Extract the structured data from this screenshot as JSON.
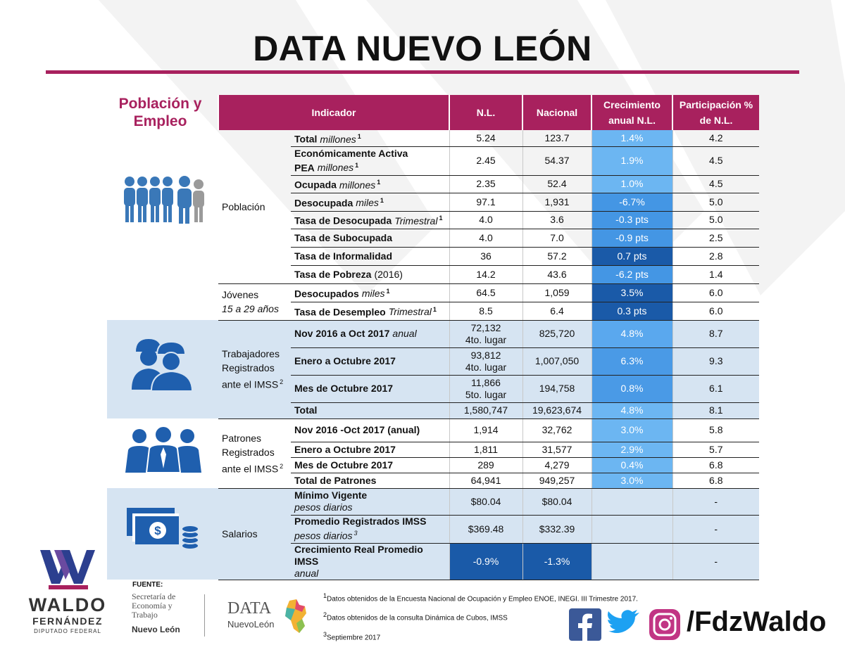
{
  "header": {
    "title": "DATA NUEVO LEÓN"
  },
  "section_title": "Población y Empleo",
  "table": {
    "columns": [
      "Indicador",
      "N.L.",
      "Nacional",
      "Crecimiento anual N.L.",
      "Participación % de N.L."
    ],
    "groups": [
      {
        "label": "Población",
        "rows": [
          {
            "indicator": "Total",
            "unit": "millones",
            "note": "1",
            "nl": "5.24",
            "nacional": "123.7",
            "growth": "1.4%",
            "growth_color": "#6cb6f2",
            "share": "4.2"
          },
          {
            "indicator": "Económicamente Activa PEA",
            "unit": "millones",
            "note": "1",
            "nl": "2.45",
            "nacional": "54.37",
            "growth": "1.9%",
            "growth_color": "#6cb6f2",
            "share": "4.5"
          },
          {
            "indicator": "Ocupada",
            "unit": "millones",
            "note": "1",
            "nl": "2.35",
            "nacional": "52.4",
            "growth": "1.0%",
            "growth_color": "#6cb6f2",
            "share": "4.5"
          },
          {
            "indicator": "Desocupada",
            "unit": "miles",
            "note": "1",
            "nl": "97.1",
            "nacional": "1,931",
            "growth": "-6.7%",
            "growth_color": "#4496e4",
            "share": "5.0"
          },
          {
            "indicator": "Tasa de Desocupada",
            "unit": "Trimestral",
            "note": "1",
            "nl": "4.0",
            "nacional": "3.6",
            "growth": "-0.3 pts",
            "growth_color": "#4496e4",
            "share": "5.0"
          },
          {
            "indicator": "Tasa de Subocupada",
            "nl": "4.0",
            "nacional": "7.0",
            "growth": "-0.9 pts",
            "growth_color": "#4496e4",
            "share": "2.5"
          },
          {
            "indicator": "Tasa de Informalidad",
            "nl": "36",
            "nacional": "57.2",
            "growth": "0.7 pts",
            "growth_color": "#1a5aa8",
            "share": "2.8"
          },
          {
            "indicator": "Tasa de Pobreza",
            "detail": "(2016)",
            "nl": "14.2",
            "nacional": "43.6",
            "growth": "-6.2 pts",
            "growth_color": "#4496e4",
            "share": "1.4"
          }
        ]
      },
      {
        "label": "Jóvenes",
        "sublabel": "15 a 29 años",
        "rows": [
          {
            "indicator": "Desocupados",
            "unit": "miles",
            "note": "1",
            "nl": "64.5",
            "nacional": "1,059",
            "growth": "3.5%",
            "growth_color": "#1a5aa8",
            "share": "6.0"
          },
          {
            "indicator": "Tasa de Desempleo",
            "unit": "Trimestral",
            "note": "1",
            "nl": "8.5",
            "nacional": "6.4",
            "growth": "0.3 pts",
            "growth_color": "#1a5aa8",
            "share": "6.0"
          }
        ]
      },
      {
        "label": "Trabajadores Registrados ante el IMSS",
        "note": "2",
        "color": "#d6e4f2",
        "rows": [
          {
            "indicator": "Nov 2016 a Oct 2017",
            "unit": "anual",
            "nl": "72,132",
            "nl_rank": "4to. lugar",
            "nacional": "825,720",
            "growth": "4.8%",
            "growth_color": "#5aa8ee",
            "share": "8.7"
          },
          {
            "indicator": "Enero a Octubre 2017",
            "nl": "93,812",
            "nl_rank": "4to. lugar",
            "nacional": "1,007,050",
            "growth": "6.3%",
            "growth_color": "#4a9ae6",
            "share": "9.3"
          },
          {
            "indicator": "Mes de Octubre 2017",
            "nl": "11,866",
            "nl_rank": "5to. lugar",
            "nacional": "194,758",
            "growth": "0.8%",
            "growth_color": "#4a9ae6",
            "share": "6.1"
          },
          {
            "indicator": "Total",
            "nl": "1,580,747",
            "nacional": "19,623,674",
            "growth": "4.8%",
            "growth_color": "#6cb6f2",
            "share": "8.1"
          }
        ]
      },
      {
        "label": "Patrones Registrados ante el IMSS",
        "note": "2",
        "rows": [
          {
            "indicator": "Nov 2016 -Oct 2017 (anual)",
            "nl": "1,914",
            "nacional": "32,762",
            "growth": "3.0%",
            "growth_color": "#6cb6f2",
            "share": "5.8"
          },
          {
            "indicator": "Enero a Octubre 2017",
            "nl": "1,811",
            "nacional": "31,577",
            "growth": "2.9%",
            "growth_color": "#6cb6f2",
            "share": "5.7"
          },
          {
            "indicator": "Mes de Octubre 2017",
            "nl": "289",
            "nacional": "4,279",
            "growth": "0.4%",
            "growth_color": "#6cb6f2",
            "share": "6.8"
          },
          {
            "indicator": "Total de Patrones",
            "nl": "64,941",
            "nacional": "949,257",
            "growth": "3.0%",
            "growth_color": "#6cb6f2",
            "share": "6.8"
          }
        ]
      },
      {
        "label": "Salarios",
        "color": "#d6e4f2",
        "rows": [
          {
            "indicator": "Mínimo Vigente",
            "subline": "pesos diarios",
            "nl": "$80.04",
            "nacional": "$80.04",
            "growth": null,
            "share": "-"
          },
          {
            "indicator": "Promedio Registrados IMSS",
            "subline": "pesos diarios",
            "note": "3",
            "nl": "$369.48",
            "nacional": "$332.39",
            "growth": null,
            "share": "-"
          },
          {
            "indicator": "Crecimiento Real Promedio IMSS",
            "subline": "anual",
            "nl": "-0.9%",
            "nacional": "-1.3%",
            "value_color": "#1a5aa8",
            "growth": null,
            "share": "-"
          }
        ]
      }
    ]
  },
  "footer": {
    "source_label": "FUENTE:",
    "secretaria": "Secretaría de Economía y Trabajo",
    "secretaria_state": "Nuevo León",
    "data_logo": "DATA",
    "data_logo_state": "NuevoLeón",
    "waldo": "WALDO",
    "fernandez": "FERNÁNDEZ",
    "role": "DIPUTADO FEDERAL",
    "footnotes": [
      {
        "mark": "1",
        "text": "Datos obtenidos de la Encuesta Nacional de Ocupación y Empleo ENOE, INEGI. III Trimestre 2017."
      },
      {
        "mark": "2",
        "text": "Datos obtenidos de la consulta Dinámica de Cubos, IMSS"
      },
      {
        "mark": "3",
        "text": "Septiembre 2017"
      }
    ],
    "handle": "/FdzWaldo"
  }
}
